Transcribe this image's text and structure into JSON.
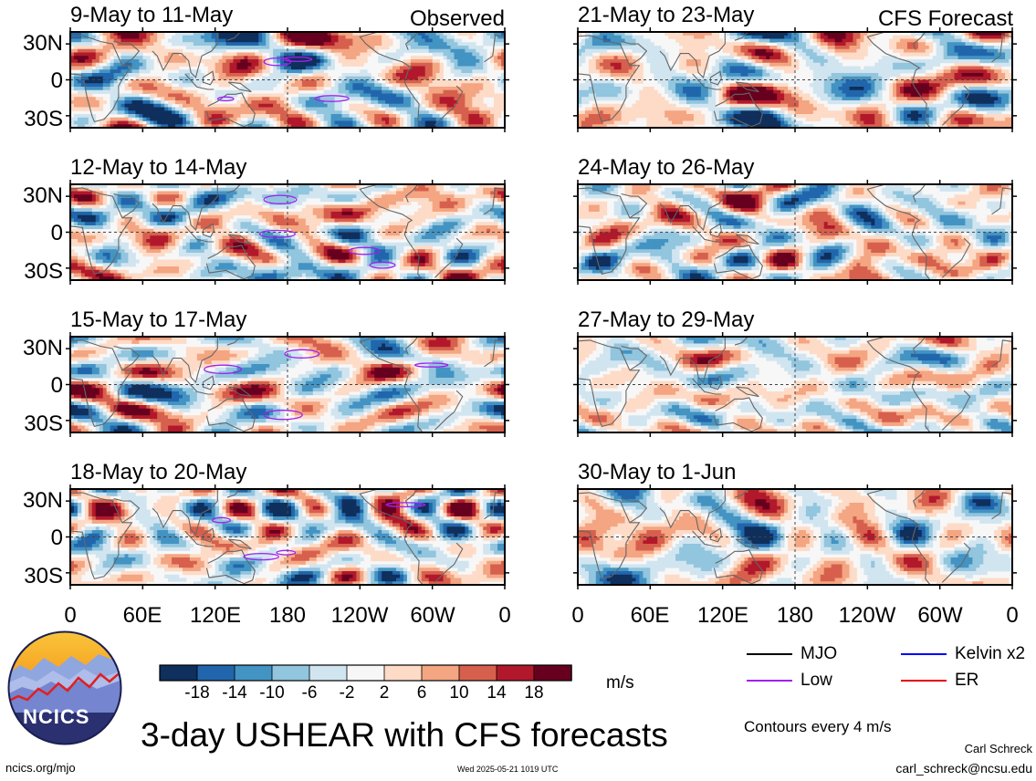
{
  "chart_data": {
    "type": "heatmap",
    "variable": "3-day USHEAR",
    "units": "m/s",
    "colorbar": {
      "levels": [
        -18,
        -14,
        -10,
        -6,
        -2,
        2,
        6,
        10,
        14,
        18
      ],
      "tick_labels": [
        "-18",
        "-14",
        "-10",
        "-6",
        "-2",
        "2",
        "6",
        "10",
        "14",
        "18"
      ],
      "colors": [
        "#0f2f5c",
        "#2166ac",
        "#4393c3",
        "#92c5de",
        "#d1e5f0",
        "#f7f7f7",
        "#fddbc7",
        "#f4a582",
        "#d6604d",
        "#b2182b",
        "#67001f"
      ]
    },
    "lon_ticks": [
      "0",
      "60E",
      "120E",
      "180",
      "120W",
      "60W",
      "0"
    ],
    "lat_ticks": [
      "30N",
      "0",
      "30S"
    ],
    "lat_range": [
      -40,
      40
    ],
    "lon_range": [
      0,
      360
    ],
    "panels": [
      {
        "period": "9-May to 11-May",
        "tag": "Observed"
      },
      {
        "period": "12-May to 14-May",
        "tag": ""
      },
      {
        "period": "15-May to 17-May",
        "tag": ""
      },
      {
        "period": "18-May to 20-May",
        "tag": ""
      },
      {
        "period": "21-May to 23-May",
        "tag": "CFS Forecast"
      },
      {
        "period": "24-May to 26-May",
        "tag": ""
      },
      {
        "period": "27-May to 29-May",
        "tag": ""
      },
      {
        "period": "30-May to 1-Jun",
        "tag": ""
      }
    ],
    "legend": [
      {
        "label": "MJO",
        "color": "#000000"
      },
      {
        "label": "Kelvin x2",
        "color": "#0000ff"
      },
      {
        "label": "Low",
        "color": "#a020f0"
      },
      {
        "label": "ER",
        "color": "#e00000"
      }
    ]
  },
  "page": {
    "title": "3-day USHEAR with CFS forecasts",
    "contour_note": "Contours every 4 m/s",
    "author": "Carl Schreck",
    "email": "carl_schreck@ncsu.edu",
    "website": "ncics.org/mjo",
    "timestamp": "Wed 2025-05-21 1019 UTC",
    "logo_text": "NCICS"
  }
}
